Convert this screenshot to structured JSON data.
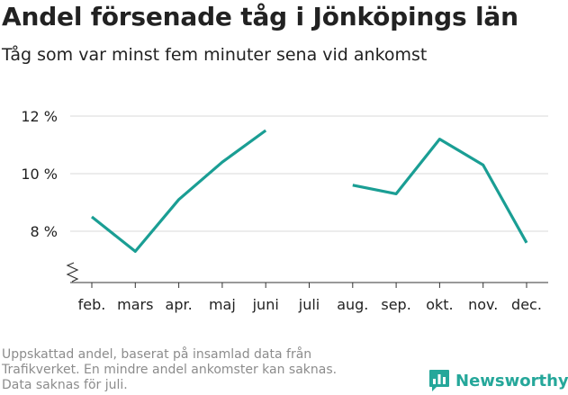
{
  "title": "Andel försenade tåg i Jönköpings län",
  "subtitle": "Tåg som var minst fem minuter sena vid ankomst",
  "footnote": [
    "Uppskattad andel, baserat på insamlad data från",
    "Trafikverket. En mindre andel ankomster kan saknas.",
    "Data saknas för juli."
  ],
  "brand": {
    "name": "Newsworthy",
    "icon": "bar-chart-speech-bubble-icon",
    "color": "#25a79a"
  },
  "chart_data": {
    "type": "line",
    "title": "Andel försenade tåg i Jönköpings län",
    "subtitle": "Tåg som var minst fem minuter sena vid ankomst",
    "xlabel": "",
    "ylabel": "",
    "categories": [
      "feb.",
      "mars",
      "apr.",
      "maj",
      "juni",
      "juli",
      "aug.",
      "sep.",
      "okt.",
      "nov.",
      "dec."
    ],
    "series": [
      {
        "values": [
          8.5,
          7.3,
          9.1,
          10.4,
          11.5,
          null,
          9.6,
          9.3,
          11.2,
          10.3,
          7.6
        ],
        "color": "#1a9e94"
      }
    ],
    "y_ticks": [
      8,
      10,
      12
    ],
    "y_tick_format": "{v} %",
    "ylim": [
      6.2,
      12.4
    ],
    "axis_break": true,
    "grid": "horizontal",
    "legend": "none"
  }
}
